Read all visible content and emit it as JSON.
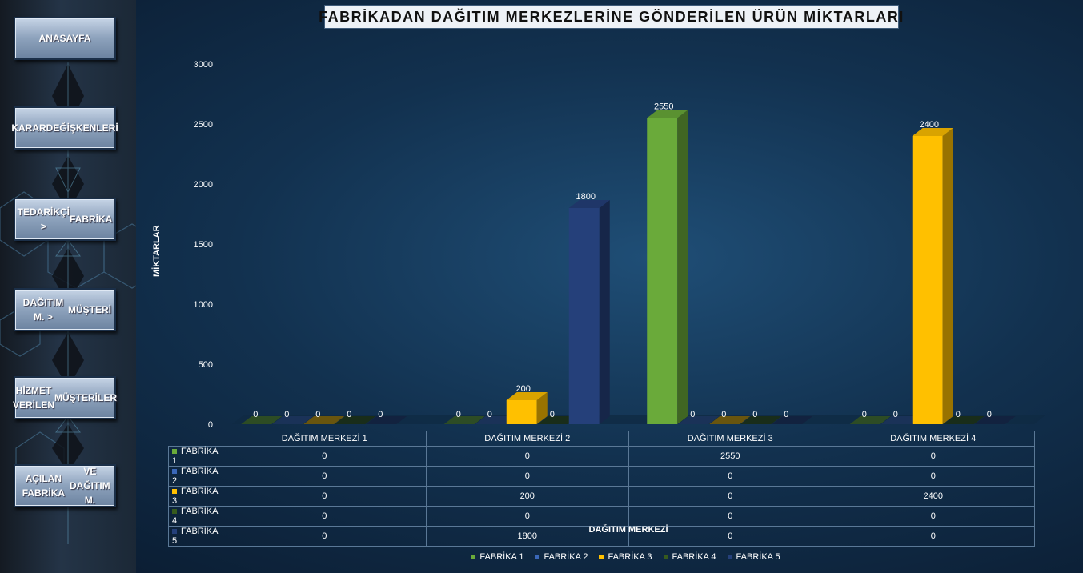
{
  "sidebar": {
    "items": [
      {
        "label_lines": [
          "ANASAYFA"
        ]
      },
      {
        "label_lines": [
          "KARAR",
          "DEĞİŞKENLERİ"
        ]
      },
      {
        "label_lines": [
          "TEDARİKÇİ >",
          "FABRİKA"
        ]
      },
      {
        "label_lines": [
          "DAĞITIM M. >",
          "MÜŞTERİ"
        ]
      },
      {
        "label_lines": [
          "HİZMET VERİLEN",
          "MÜŞTERİLER"
        ]
      },
      {
        "label_lines": [
          "AÇILAN FABRİKA",
          "VE DAĞITIM M."
        ]
      }
    ]
  },
  "colors": {
    "FABRİKA 1": "#6aaa3a",
    "FABRİKA 2": "#3a67b8",
    "FABRİKA 3": "#ffc000",
    "FABRİKA 4": "#375b1e",
    "FABRİKA 5": "#25407a"
  },
  "chart_data": {
    "type": "bar",
    "title": "FABRİKADAN DAĞITIM MERKEZLERİNE GÖNDERİLEN ÜRÜN MİKTARLARI",
    "xlabel": "DAĞITIM MERKEZİ",
    "ylabel": "MİKTARLAR",
    "ylim": [
      0,
      3000
    ],
    "yticks": [
      "0",
      "500",
      "1000",
      "1500",
      "2000",
      "2500",
      "3000"
    ],
    "categories": [
      "DAĞITIM MERKEZİ 1",
      "DAĞITIM MERKEZİ 2",
      "DAĞITIM MERKEZİ 3",
      "DAĞITIM MERKEZİ 4"
    ],
    "series": [
      {
        "name": "FABRİKA 1",
        "values": [
          0,
          0,
          2550,
          0
        ]
      },
      {
        "name": "FABRİKA 2",
        "values": [
          0,
          0,
          0,
          0
        ]
      },
      {
        "name": "FABRİKA 3",
        "values": [
          0,
          200,
          0,
          2400
        ]
      },
      {
        "name": "FABRİKA 4",
        "values": [
          0,
          0,
          0,
          0
        ]
      },
      {
        "name": "FABRİKA 5",
        "values": [
          0,
          1800,
          0,
          0
        ]
      }
    ],
    "grid": false,
    "legend_position": "bottom",
    "data_table": true
  }
}
